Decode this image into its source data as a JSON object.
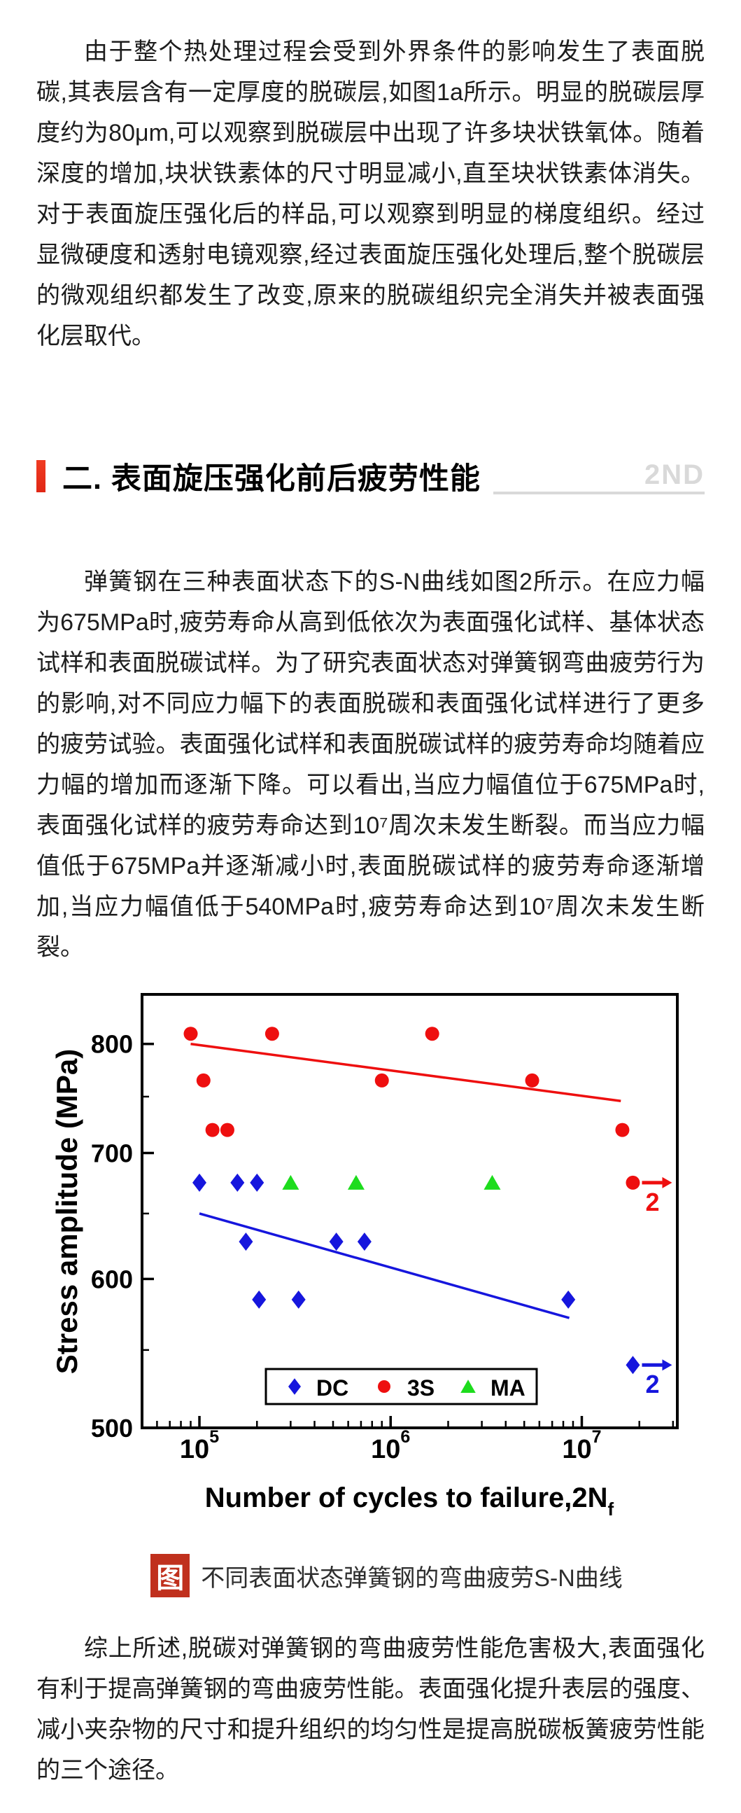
{
  "document": {
    "para1": "由于整个热处理过程会受到外界条件的影响发生了表面脱碳,其表层含有一定厚度的脱碳层,如图1a所示。明显的脱碳层厚度约为80μm,可以观察到脱碳层中出现了许多块状铁氧体。随着深度的增加,块状铁素体的尺寸明显减小,直至块状铁素体消失。对于表面旋压强化后的样品,可以观察到明显的梯度组织。经过显微硬度和透射电镜观察,经过表面旋压强化处理后,整个脱碳层的微观组织都发生了改变,原来的脱碳组织完全消失并被表面强化层取代。",
    "section": {
      "title": "二. 表面旋压强化前后疲劳性能",
      "watermark": "2ND"
    },
    "para2": "弹簧钢在三种表面状态下的S-N曲线如图2所示。在应力幅为675MPa时,疲劳寿命从高到低依次为表面强化试样、基体状态试样和表面脱碳试样。为了研究表面状态对弹簧钢弯曲疲劳行为的影响,对不同应力幅下的表面脱碳和表面强化试样进行了更多的疲劳试验。表面强化试样和表面脱碳试样的疲劳寿命均随着应力幅的增加而逐渐下降。可以看出,当应力幅值位于675MPa时,表面强化试样的疲劳寿命达到10⁷周次未发生断裂。而当应力幅值低于675MPa并逐渐减小时,表面脱碳试样的疲劳寿命逐渐增加,当应力幅值低于540MPa时,疲劳寿命达到10⁷周次未发生断裂。",
    "figure_caption": {
      "badge": "图",
      "text": "不同表面状态弹簧钢的弯曲疲劳S-N曲线"
    },
    "para3": "综上所述,脱碳对弹簧钢的弯曲疲劳性能危害极大,表面强化有利于提高弹簧钢的弯曲疲劳性能。表面强化提升表层的强度、减小夹杂物的尺寸和提升组织的均匀性是提高脱碳板簧疲劳性能的三个途径。"
  },
  "colors": {
    "accent_red": "#e02715",
    "watermark_gray": "#d9d9d9",
    "badge_red": "#c0301d",
    "body_text": "#1d1d1d"
  },
  "chart_data": {
    "type": "scatter",
    "title": "",
    "xlabel": "Number of cycles to failure,2N",
    "xlabel_subscript": "f",
    "ylabel": "Stress amplitude (MPa)",
    "x_scale": "log",
    "y_scale": "log",
    "xlim": [
      50100,
      31600000
    ],
    "ylim": [
      500,
      850
    ],
    "x_major_ticks": [
      100000,
      1000000,
      10000000
    ],
    "x_tick_labels": [
      {
        "base": "10",
        "exp": "5"
      },
      {
        "base": "10",
        "exp": "6"
      },
      {
        "base": "10",
        "exp": "7"
      }
    ],
    "y_major_ticks": [
      500,
      600,
      700,
      800
    ],
    "y_minor_ticks": [
      550,
      650,
      750
    ],
    "grid": false,
    "legend_position": "inside-bottom-center",
    "runout_label": "2",
    "series": [
      {
        "name": "DC",
        "marker": "diamond",
        "color": "#1616dd",
        "points": [
          [
            100000,
            675
          ],
          [
            158000,
            675
          ],
          [
            200000,
            675
          ],
          [
            175000,
            628
          ],
          [
            520000,
            628
          ],
          [
            730000,
            628
          ],
          [
            205000,
            585
          ],
          [
            330000,
            585
          ],
          [
            8500000,
            585
          ]
        ],
        "runout_points": [
          [
            18500000,
            540
          ]
        ],
        "trend_line": [
          [
            100000,
            650
          ],
          [
            8600000,
            572
          ]
        ]
      },
      {
        "name": "3S",
        "marker": "circle",
        "color": "#ee0f0f",
        "points": [
          [
            90000,
            810
          ],
          [
            240000,
            810
          ],
          [
            1650000,
            810
          ],
          [
            105000,
            765
          ],
          [
            900000,
            765
          ],
          [
            5500000,
            765
          ],
          [
            117000,
            720
          ],
          [
            140000,
            720
          ],
          [
            16300000,
            720
          ]
        ],
        "runout_points": [
          [
            18500000,
            675
          ]
        ],
        "trend_line": [
          [
            90000,
            800
          ],
          [
            16000000,
            746
          ]
        ]
      },
      {
        "name": "MA",
        "marker": "triangle",
        "color": "#1ddc1d",
        "points": [
          [
            300000,
            675
          ],
          [
            660000,
            675
          ],
          [
            3400000,
            675
          ]
        ],
        "runout_points": [],
        "trend_line": null
      }
    ]
  }
}
